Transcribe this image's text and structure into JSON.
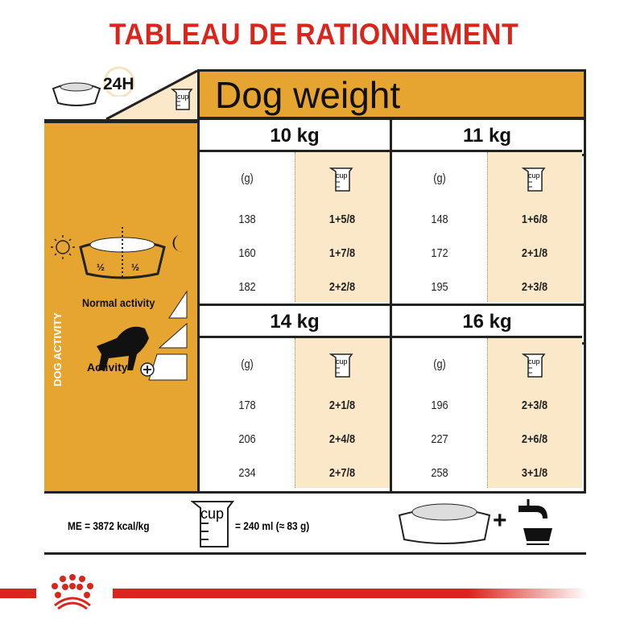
{
  "title": "TABLEAU DE RATIONNEMENT",
  "period": "24H",
  "header": "Dog weight",
  "cup_label": "cup",
  "fraction": "½",
  "left_panel": {
    "side_label": "DOG ACTIVITY",
    "normal": "Normal activity",
    "activity": "Activity"
  },
  "columns": {
    "grams": "(g)"
  },
  "weights": [
    {
      "label": "10 kg",
      "rows": [
        [
          "138",
          "1+5/8"
        ],
        [
          "160",
          "1+7/8"
        ],
        [
          "182",
          "2+2/8"
        ]
      ]
    },
    {
      "label": "11 kg",
      "rows": [
        [
          "148",
          "1+6/8"
        ],
        [
          "172",
          "2+1/8"
        ],
        [
          "195",
          "2+3/8"
        ]
      ]
    },
    {
      "label": "14 kg",
      "rows": [
        [
          "178",
          "2+1/8"
        ],
        [
          "206",
          "2+4/8"
        ],
        [
          "234",
          "2+7/8"
        ]
      ]
    },
    {
      "label": "16 kg",
      "rows": [
        [
          "196",
          "2+3/8"
        ],
        [
          "227",
          "2+6/8"
        ],
        [
          "258",
          "3+1/8"
        ]
      ]
    }
  ],
  "footer": {
    "me": "ME = 3872 kcal/kg",
    "cup_eq": "= 240 ml (≈ 83 g)",
    "plus": "+"
  },
  "colors": {
    "accent": "#e6a531",
    "title": "#d9261c",
    "cup_bg": "#fbe8c8"
  }
}
